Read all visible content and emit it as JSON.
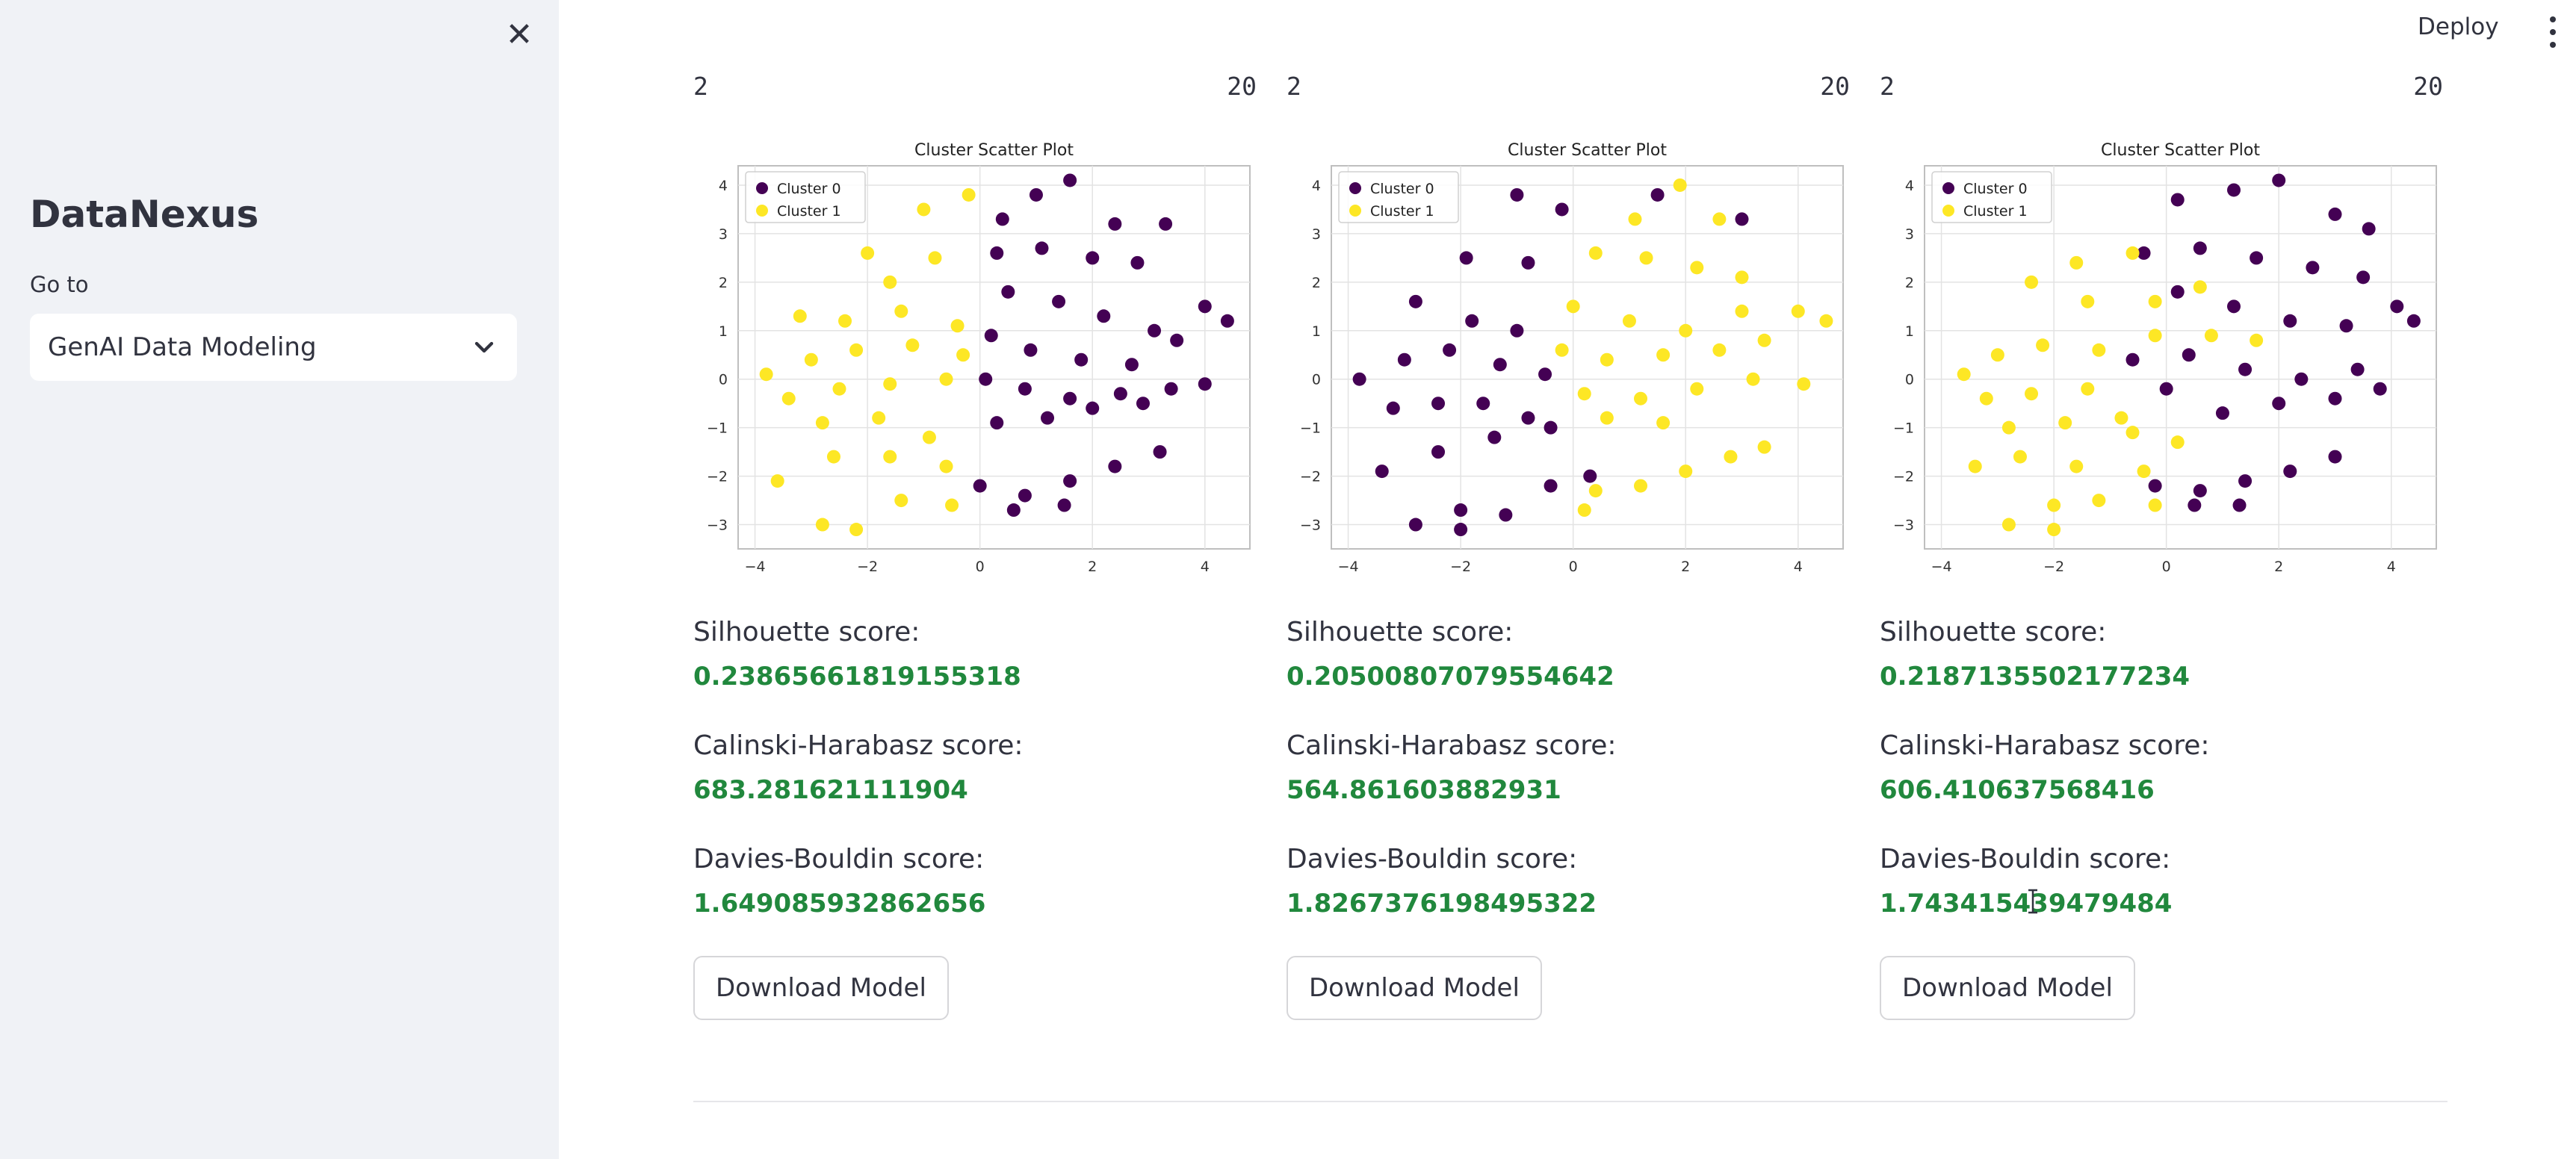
{
  "sidebar": {
    "app_title": "DataNexus",
    "nav_label": "Go to",
    "nav_selected": "GenAI Data Modeling",
    "close_icon": "close-icon",
    "chevron_icon": "chevron-down-icon"
  },
  "header": {
    "deploy_label": "Deploy",
    "menu_icon": "vertical-ellipsis-icon"
  },
  "colors": {
    "cluster0": "#440154",
    "cluster1": "#fde725",
    "metric_value": "#21883d",
    "sidebar_bg": "#f0f2f6"
  },
  "columns": [
    {
      "slider": {
        "min": "2",
        "max": "20"
      },
      "silhouette_label": "Silhouette score:",
      "silhouette_value": "0.23865661819155318",
      "calinski_label": "Calinski-Harabasz score:",
      "calinski_value": "683.281621111904",
      "davies_label": "Davies-Bouldin score:",
      "davies_value": "1.649085932862656",
      "download_label": "Download Model"
    },
    {
      "slider": {
        "min": "2",
        "max": "20"
      },
      "silhouette_label": "Silhouette score:",
      "silhouette_value": "0.20500807079554642",
      "calinski_label": "Calinski-Harabasz score:",
      "calinski_value": "564.861603882931",
      "davies_label": "Davies-Bouldin score:",
      "davies_value": "1.8267376198495322",
      "download_label": "Download Model"
    },
    {
      "slider": {
        "min": "2",
        "max": "20"
      },
      "silhouette_label": "Silhouette score:",
      "silhouette_value": "0.2187135502177234",
      "calinski_label": "Calinski-Harabasz score:",
      "calinski_value": "606.410637568416",
      "davies_label": "Davies-Bouldin score:",
      "davies_value": "1.743415439479484",
      "download_label": "Download Model"
    }
  ],
  "chart_data": [
    {
      "type": "scatter",
      "title": "Cluster Scatter Plot",
      "xlim": [
        -4.3,
        4.8
      ],
      "ylim": [
        -3.5,
        4.4
      ],
      "xticks": [
        "−4",
        "−2",
        "0",
        "2",
        "4"
      ],
      "yticks": [
        "−3",
        "−2",
        "−1",
        "0",
        "1",
        "2",
        "3",
        "4"
      ],
      "grid": true,
      "legend_position": "top-left",
      "series": [
        {
          "name": "Cluster 0",
          "color": "#440154",
          "points": [
            [
              0.4,
              3.3
            ],
            [
              1.0,
              3.8
            ],
            [
              1.6,
              4.1
            ],
            [
              2.4,
              3.2
            ],
            [
              3.3,
              3.2
            ],
            [
              0.3,
              2.6
            ],
            [
              1.1,
              2.7
            ],
            [
              2.0,
              2.5
            ],
            [
              2.8,
              2.4
            ],
            [
              0.5,
              1.8
            ],
            [
              1.4,
              1.6
            ],
            [
              2.2,
              1.3
            ],
            [
              3.1,
              1.0
            ],
            [
              4.0,
              1.5
            ],
            [
              4.4,
              1.2
            ],
            [
              0.2,
              0.9
            ],
            [
              0.9,
              0.6
            ],
            [
              1.8,
              0.4
            ],
            [
              2.7,
              0.3
            ],
            [
              3.5,
              0.8
            ],
            [
              0.1,
              0.0
            ],
            [
              0.8,
              -0.2
            ],
            [
              1.6,
              -0.4
            ],
            [
              2.5,
              -0.3
            ],
            [
              3.4,
              -0.2
            ],
            [
              4.0,
              -0.1
            ],
            [
              0.3,
              -0.9
            ],
            [
              1.2,
              -0.8
            ],
            [
              2.0,
              -0.6
            ],
            [
              2.9,
              -0.5
            ],
            [
              0.0,
              -2.2
            ],
            [
              0.8,
              -2.4
            ],
            [
              1.6,
              -2.1
            ],
            [
              2.4,
              -1.8
            ],
            [
              3.2,
              -1.5
            ],
            [
              0.6,
              -2.7
            ],
            [
              1.5,
              -2.6
            ]
          ]
        },
        {
          "name": "Cluster 1",
          "color": "#fde725",
          "points": [
            [
              -1.0,
              3.5
            ],
            [
              -0.2,
              3.8
            ],
            [
              -2.0,
              2.6
            ],
            [
              -0.8,
              2.5
            ],
            [
              -1.6,
              2.0
            ],
            [
              -3.2,
              1.3
            ],
            [
              -2.4,
              1.2
            ],
            [
              -1.4,
              1.4
            ],
            [
              -0.4,
              1.1
            ],
            [
              -3.8,
              0.1
            ],
            [
              -3.0,
              0.4
            ],
            [
              -2.2,
              0.6
            ],
            [
              -1.2,
              0.7
            ],
            [
              -0.3,
              0.5
            ],
            [
              -3.4,
              -0.4
            ],
            [
              -2.5,
              -0.2
            ],
            [
              -1.6,
              -0.1
            ],
            [
              -0.6,
              0.0
            ],
            [
              -2.8,
              -0.9
            ],
            [
              -1.8,
              -0.8
            ],
            [
              -0.9,
              -1.2
            ],
            [
              -3.6,
              -2.1
            ],
            [
              -2.6,
              -1.6
            ],
            [
              -1.6,
              -1.6
            ],
            [
              -0.6,
              -1.8
            ],
            [
              -2.8,
              -3.0
            ],
            [
              -2.2,
              -3.1
            ],
            [
              -1.4,
              -2.5
            ],
            [
              -0.5,
              -2.6
            ]
          ]
        }
      ]
    },
    {
      "type": "scatter",
      "title": "Cluster Scatter Plot",
      "xlim": [
        -4.3,
        4.8
      ],
      "ylim": [
        -3.5,
        4.4
      ],
      "xticks": [
        "−4",
        "−2",
        "0",
        "2",
        "4"
      ],
      "yticks": [
        "−3",
        "−2",
        "−1",
        "0",
        "1",
        "2",
        "3",
        "4"
      ],
      "grid": true,
      "legend_position": "top-left",
      "series": [
        {
          "name": "Cluster 0",
          "color": "#440154",
          "points": [
            [
              -1.0,
              3.8
            ],
            [
              -0.2,
              3.5
            ],
            [
              1.5,
              3.8
            ],
            [
              3.0,
              3.3
            ],
            [
              -1.9,
              2.5
            ],
            [
              -0.8,
              2.4
            ],
            [
              -2.8,
              1.6
            ],
            [
              -1.8,
              1.2
            ],
            [
              -1.0,
              1.0
            ],
            [
              -3.8,
              0.0
            ],
            [
              -3.0,
              0.4
            ],
            [
              -2.2,
              0.6
            ],
            [
              -1.3,
              0.3
            ],
            [
              -0.5,
              0.1
            ],
            [
              -3.2,
              -0.6
            ],
            [
              -2.4,
              -0.5
            ],
            [
              -1.6,
              -0.5
            ],
            [
              -0.8,
              -0.8
            ],
            [
              -3.4,
              -1.9
            ],
            [
              -2.4,
              -1.5
            ],
            [
              -1.4,
              -1.2
            ],
            [
              -0.4,
              -1.0
            ],
            [
              -2.8,
              -3.0
            ],
            [
              -2.0,
              -2.7
            ],
            [
              -1.2,
              -2.8
            ],
            [
              -0.4,
              -2.2
            ],
            [
              0.3,
              -2.0
            ],
            [
              -2.0,
              -3.1
            ]
          ]
        },
        {
          "name": "Cluster 1",
          "color": "#fde725",
          "points": [
            [
              1.1,
              3.3
            ],
            [
              1.9,
              4.0
            ],
            [
              2.6,
              3.3
            ],
            [
              0.4,
              2.6
            ],
            [
              1.3,
              2.5
            ],
            [
              2.2,
              2.3
            ],
            [
              3.0,
              2.1
            ],
            [
              0.0,
              1.5
            ],
            [
              1.0,
              1.2
            ],
            [
              2.0,
              1.0
            ],
            [
              3.0,
              1.4
            ],
            [
              4.0,
              1.4
            ],
            [
              4.5,
              1.2
            ],
            [
              -0.2,
              0.6
            ],
            [
              0.6,
              0.4
            ],
            [
              1.6,
              0.5
            ],
            [
              2.6,
              0.6
            ],
            [
              3.4,
              0.8
            ],
            [
              0.2,
              -0.3
            ],
            [
              1.2,
              -0.4
            ],
            [
              2.2,
              -0.2
            ],
            [
              3.2,
              0.0
            ],
            [
              4.1,
              -0.1
            ],
            [
              0.6,
              -0.8
            ],
            [
              1.6,
              -0.9
            ],
            [
              0.4,
              -2.3
            ],
            [
              1.2,
              -2.2
            ],
            [
              2.0,
              -1.9
            ],
            [
              2.8,
              -1.6
            ],
            [
              3.4,
              -1.4
            ],
            [
              0.2,
              -2.7
            ]
          ]
        }
      ]
    },
    {
      "type": "scatter",
      "title": "Cluster Scatter Plot",
      "xlim": [
        -4.3,
        4.8
      ],
      "ylim": [
        -3.5,
        4.4
      ],
      "xticks": [
        "−4",
        "−2",
        "0",
        "2",
        "4"
      ],
      "yticks": [
        "−3",
        "−2",
        "−1",
        "0",
        "1",
        "2",
        "3",
        "4"
      ],
      "grid": true,
      "legend_position": "top-left",
      "series": [
        {
          "name": "Cluster 0",
          "color": "#440154",
          "points": [
            [
              0.2,
              3.7
            ],
            [
              1.2,
              3.9
            ],
            [
              2.0,
              4.1
            ],
            [
              3.0,
              3.4
            ],
            [
              3.6,
              3.1
            ],
            [
              -0.4,
              2.6
            ],
            [
              0.6,
              2.7
            ],
            [
              1.6,
              2.5
            ],
            [
              2.6,
              2.3
            ],
            [
              3.5,
              2.1
            ],
            [
              0.2,
              1.8
            ],
            [
              1.2,
              1.5
            ],
            [
              2.2,
              1.2
            ],
            [
              3.2,
              1.1
            ],
            [
              4.1,
              1.5
            ],
            [
              4.4,
              1.2
            ],
            [
              -0.6,
              0.4
            ],
            [
              0.4,
              0.5
            ],
            [
              1.4,
              0.2
            ],
            [
              2.4,
              0.0
            ],
            [
              3.4,
              0.2
            ],
            [
              0.0,
              -0.2
            ],
            [
              1.0,
              -0.7
            ],
            [
              2.0,
              -0.5
            ],
            [
              3.0,
              -0.4
            ],
            [
              3.8,
              -0.2
            ],
            [
              -0.2,
              -2.2
            ],
            [
              0.6,
              -2.3
            ],
            [
              1.4,
              -2.1
            ],
            [
              2.2,
              -1.9
            ],
            [
              3.0,
              -1.6
            ],
            [
              0.5,
              -2.6
            ],
            [
              1.3,
              -2.6
            ]
          ]
        },
        {
          "name": "Cluster 1",
          "color": "#fde725",
          "points": [
            [
              -1.6,
              2.4
            ],
            [
              -0.6,
              2.6
            ],
            [
              -2.4,
              2.0
            ],
            [
              -1.4,
              1.6
            ],
            [
              -0.2,
              1.6
            ],
            [
              0.6,
              1.9
            ],
            [
              -3.6,
              0.1
            ],
            [
              -3.0,
              0.5
            ],
            [
              -2.2,
              0.7
            ],
            [
              -1.2,
              0.6
            ],
            [
              -0.2,
              0.9
            ],
            [
              0.8,
              0.9
            ],
            [
              1.6,
              0.8
            ],
            [
              -3.2,
              -0.4
            ],
            [
              -2.4,
              -0.3
            ],
            [
              -1.4,
              -0.2
            ],
            [
              -0.8,
              -0.8
            ],
            [
              -2.8,
              -1.0
            ],
            [
              -1.8,
              -0.9
            ],
            [
              -0.6,
              -1.1
            ],
            [
              0.2,
              -1.3
            ],
            [
              -3.4,
              -1.8
            ],
            [
              -2.6,
              -1.6
            ],
            [
              -1.6,
              -1.8
            ],
            [
              -0.4,
              -1.9
            ],
            [
              -2.8,
              -3.0
            ],
            [
              -2.0,
              -2.6
            ],
            [
              -1.2,
              -2.5
            ],
            [
              -0.2,
              -2.6
            ],
            [
              -2.0,
              -3.1
            ]
          ]
        }
      ]
    }
  ]
}
